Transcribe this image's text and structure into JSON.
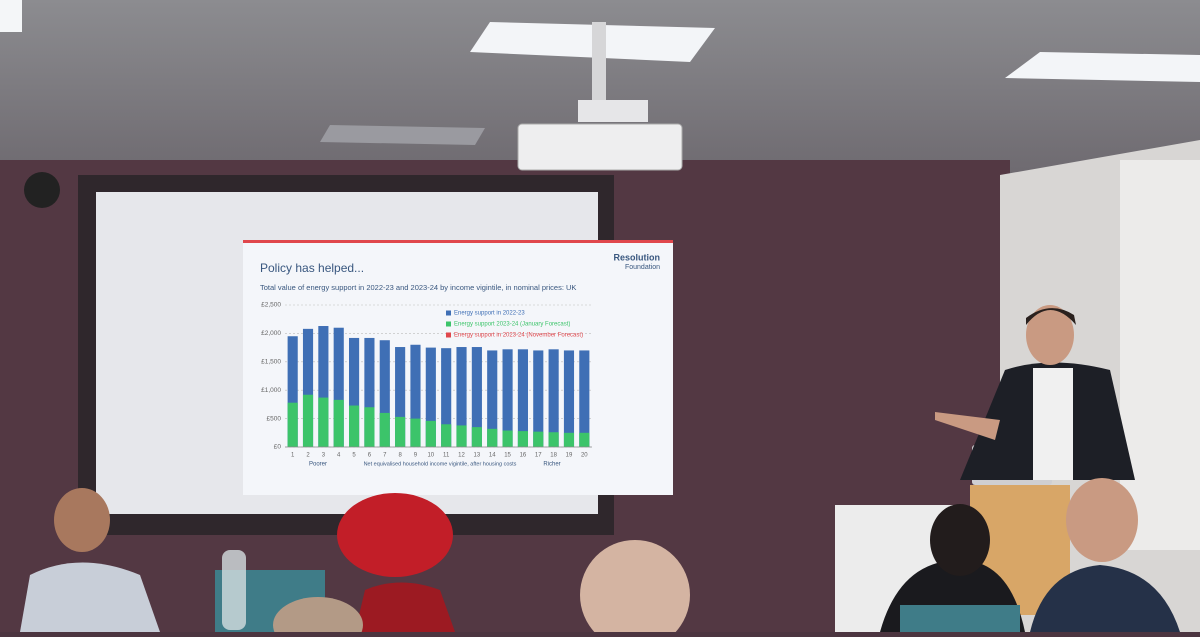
{
  "chart_data": {
    "type": "bar",
    "logo": [
      "Resolution",
      "Foundation"
    ],
    "title": "Policy has helped...",
    "subtitle": "Total value of energy support in 2022-23 and 2023-24 by income vigintile, in nominal prices: UK",
    "x_label": {
      "left": "Poorer",
      "middle": "Net equivalised household income vigintile, after housing costs",
      "right": "Richer"
    },
    "categories": [
      "1",
      "2",
      "3",
      "4",
      "5",
      "6",
      "7",
      "8",
      "9",
      "10",
      "11",
      "12",
      "13",
      "14",
      "15",
      "16",
      "17",
      "18",
      "19",
      "20"
    ],
    "series": [
      {
        "name": "Energy support in 2022-23",
        "color": "#3f6fb5",
        "values": [
          1950,
          2080,
          2130,
          2100,
          1920,
          1920,
          1880,
          1760,
          1800,
          1750,
          1740,
          1760,
          1760,
          1700,
          1720,
          1720,
          1700,
          1720,
          1700,
          1700
        ]
      },
      {
        "name": "Energy support 2023-24 (January Forecast)",
        "color": "#3cc46a",
        "values": [
          780,
          920,
          870,
          830,
          730,
          700,
          600,
          530,
          500,
          460,
          400,
          380,
          350,
          320,
          290,
          280,
          270,
          260,
          250,
          250
        ]
      },
      {
        "name": "Energy support in 2023-24 (November Forecast)",
        "color": "#e0474c",
        "values": [
          null,
          null,
          null,
          null,
          null,
          null,
          null,
          null,
          null,
          null,
          null,
          null,
          null,
          null,
          null,
          null,
          null,
          null,
          null,
          null
        ]
      }
    ],
    "ylim": [
      0,
      2500
    ],
    "yticks": [
      {
        "value": 0,
        "label": "£0"
      },
      {
        "value": 500,
        "label": "£500"
      },
      {
        "value": 1000,
        "label": "£1,000"
      },
      {
        "value": 1500,
        "label": "£1,500"
      },
      {
        "value": 2000,
        "label": "£2,000"
      },
      {
        "value": 2500,
        "label": "£2,500"
      }
    ],
    "grid": true
  }
}
